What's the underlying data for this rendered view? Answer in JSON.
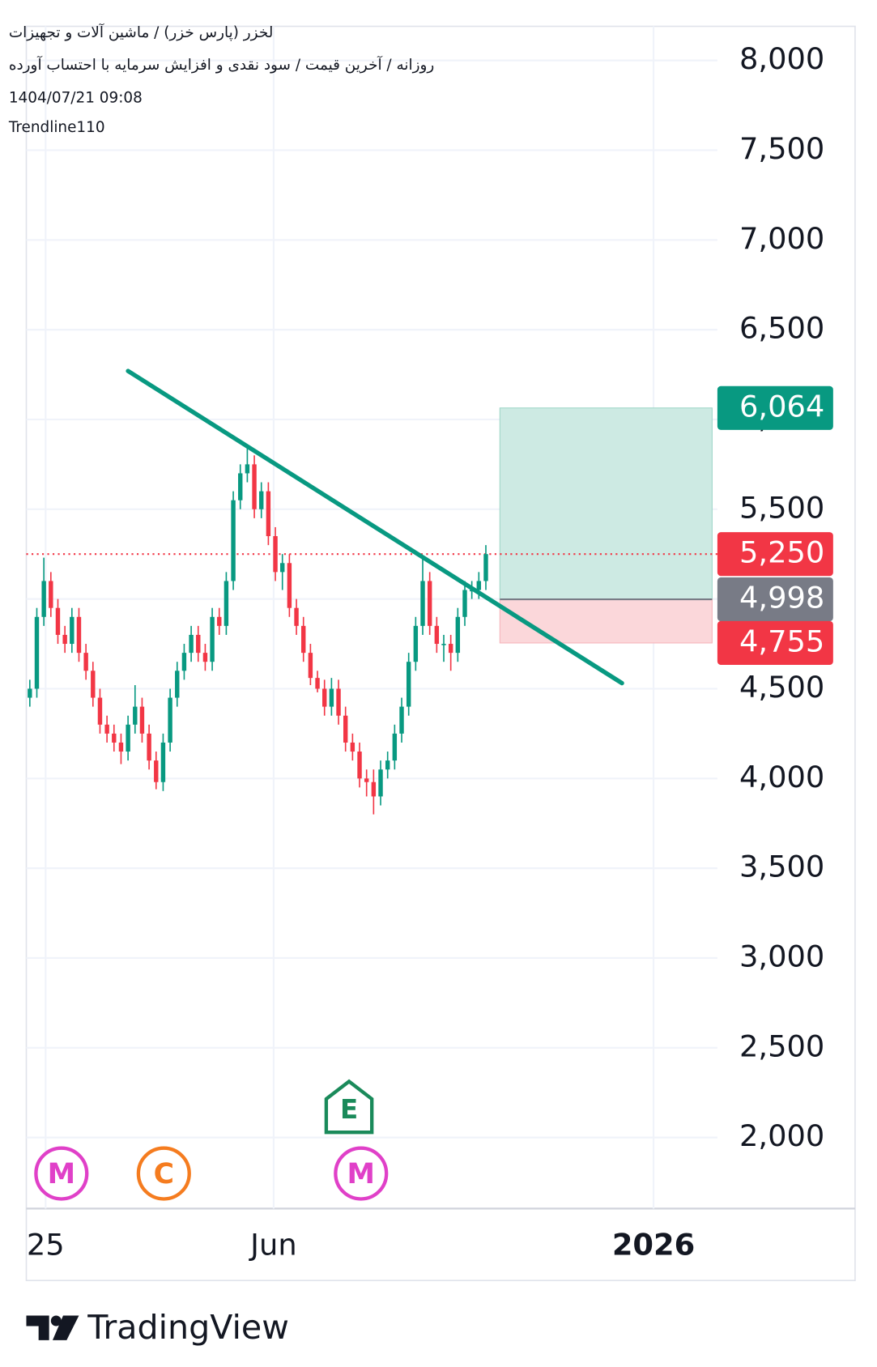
{
  "chart_data": {
    "type": "candlestick",
    "title": "لخزر (پارس خزر) / ماشین آلات و تجهیزات",
    "subtitle": "روزانه / آخرین قیمت / سود نقدی و افزایش سرمایه با احتساب آورده",
    "date": "1404/07/21 09:08",
    "author": "Trendline110",
    "brand": "TradingView",
    "up_color": "#089981",
    "down_color": "#f23645",
    "open": [
      4450,
      4500,
      4900,
      5100,
      4950,
      4800,
      4750,
      4900,
      4700,
      4600,
      4450,
      4300,
      4250,
      4200,
      4150,
      4300,
      4400,
      4250,
      4100,
      3980,
      4200,
      4450,
      4600,
      4700,
      4800,
      4700,
      4650,
      4900,
      4850,
      5100,
      5550,
      5700,
      5750,
      5500,
      5600,
      5350,
      5150,
      5200,
      4950,
      4850,
      4700,
      4560,
      4500,
      4400,
      4500,
      4350,
      4200,
      4150,
      4000,
      3980,
      3900,
      4050,
      4100,
      4250,
      4400,
      4650,
      4850,
      5100,
      4850,
      4750,
      4750,
      4700,
      4900,
      5050,
      5050,
      5100
    ],
    "high": [
      4550,
      4950,
      5230,
      5150,
      5000,
      4850,
      4950,
      4950,
      4750,
      4650,
      4500,
      4350,
      4300,
      4250,
      4350,
      4520,
      4450,
      4300,
      4150,
      4250,
      4500,
      4650,
      4750,
      4850,
      4850,
      4750,
      4950,
      4950,
      5150,
      5600,
      5750,
      5850,
      5800,
      5650,
      5650,
      5400,
      5250,
      5250,
      5000,
      4900,
      4750,
      4600,
      4550,
      4560,
      4550,
      4400,
      4250,
      4200,
      4050,
      4050,
      4100,
      4150,
      4300,
      4450,
      4700,
      4900,
      5230,
      5150,
      4900,
      4800,
      4800,
      4950,
      5100,
      5100,
      5150,
      5300
    ],
    "low": [
      4400,
      4450,
      4850,
      4900,
      4750,
      4700,
      4700,
      4650,
      4550,
      4400,
      4250,
      4200,
      4150,
      4080,
      4100,
      4250,
      4200,
      4050,
      3940,
      3930,
      4150,
      4400,
      4550,
      4650,
      4650,
      4600,
      4600,
      4800,
      4800,
      5050,
      5500,
      5650,
      5450,
      5450,
      5300,
      5100,
      5050,
      4900,
      4800,
      4650,
      4520,
      4480,
      4350,
      4350,
      4300,
      4150,
      4100,
      3950,
      3900,
      3800,
      3850,
      4000,
      4050,
      4200,
      4350,
      4600,
      4800,
      4800,
      4700,
      4650,
      4600,
      4650,
      4850,
      5000,
      5000,
      5050
    ],
    "close": [
      4500,
      4900,
      5100,
      4950,
      4800,
      4750,
      4900,
      4700,
      4600,
      4450,
      4300,
      4250,
      4200,
      4150,
      4300,
      4400,
      4250,
      4100,
      3980,
      4200,
      4450,
      4600,
      4700,
      4800,
      4700,
      4650,
      4900,
      4850,
      5100,
      5550,
      5700,
      5750,
      5500,
      5600,
      5350,
      5150,
      5200,
      4950,
      4850,
      4700,
      4560,
      4500,
      4400,
      4500,
      4350,
      4200,
      4150,
      4000,
      3980,
      3900,
      4050,
      4100,
      4250,
      4400,
      4650,
      4850,
      5100,
      4850,
      4750,
      4750,
      4700,
      4900,
      5050,
      5050,
      5100,
      5250
    ],
    "xlim": [
      -0.5,
      98
    ],
    "xticks": [
      {
        "value": 2.25,
        "label": "25"
      },
      {
        "value": 34.75,
        "label": "Jun"
      },
      {
        "value": 88.9,
        "label": "2026"
      }
    ],
    "ylim": [
      1604,
      8190
    ],
    "yticks": [
      {
        "value": 2000,
        "label": "2,000"
      },
      {
        "value": 2500,
        "label": "2,500"
      },
      {
        "value": 3000,
        "label": "3,000"
      },
      {
        "value": 3500,
        "label": "3,500"
      },
      {
        "value": 4000,
        "label": "4,000"
      },
      {
        "value": 4500,
        "label": "4,500"
      },
      {
        "value": 5000,
        "label": "5,000"
      },
      {
        "value": 5500,
        "label": "5,500"
      },
      {
        "value": 6000,
        "label": "6,000"
      },
      {
        "value": 6500,
        "label": "6,500"
      },
      {
        "value": 7000,
        "label": "7,000"
      },
      {
        "value": 7500,
        "label": "7,500"
      },
      {
        "value": 8000,
        "label": "8,000"
      }
    ],
    "grid": true,
    "trendline": {
      "x": [
        14,
        84.4
      ],
      "y": [
        6270,
        4531
      ],
      "color": "#089981"
    },
    "position": {
      "x": [
        67,
        97.25
      ],
      "entry": 4998,
      "target": 6064,
      "stop": 4755,
      "profit_color": "#cdeae3",
      "loss_color": "#fbd7da",
      "entry_color": "#787b86"
    },
    "price_labels": [
      {
        "value": 6064,
        "label": "6,064",
        "color": "#089981"
      },
      {
        "value": 5250,
        "label": "5,250",
        "color": "#f23645"
      },
      {
        "value": 4998,
        "label": "4,998",
        "color": "#787b86"
      },
      {
        "value": 4755,
        "label": "4,755",
        "color": "#f23645"
      }
    ],
    "last_price_line": {
      "value": 5250,
      "color": "#f23645"
    },
    "events": [
      {
        "label": "M",
        "x": 4.5,
        "color": "#e040c8",
        "shape": "circle"
      },
      {
        "label": "C",
        "x": 19.1,
        "color": "#f57c1f",
        "shape": "circle"
      },
      {
        "label": "E",
        "x": 45.5,
        "color": "#1a8a5a",
        "shape": "house"
      },
      {
        "label": "M",
        "x": 47.2,
        "color": "#e040c8",
        "shape": "circle"
      }
    ]
  }
}
